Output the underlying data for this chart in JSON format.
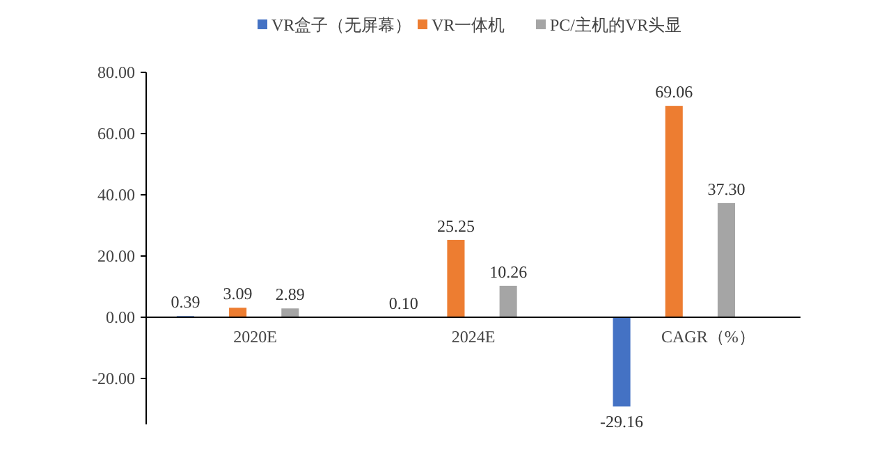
{
  "chart_data": {
    "type": "bar",
    "categories": [
      "2020E",
      "2024E",
      "CAGR（%）"
    ],
    "series": [
      {
        "name": "VR盒子（无屏幕）",
        "color": "#4472c4",
        "values": [
          0.39,
          0.1,
          -29.16
        ],
        "value_labels": [
          "0.39",
          "0.10",
          "-29.16"
        ]
      },
      {
        "name": "VR一体机",
        "color": "#ed7d31",
        "values": [
          3.09,
          25.25,
          69.06
        ],
        "value_labels": [
          "3.09",
          "25.25",
          "69.06"
        ]
      },
      {
        "name": "PC/主机的VR头显",
        "color": "#a5a5a5",
        "values": [
          2.89,
          10.26,
          37.3
        ],
        "value_labels": [
          "2.89",
          "10.26",
          "37.30"
        ]
      }
    ],
    "ylim": [
      -35,
      80
    ],
    "yticks": [
      {
        "value": -20,
        "label": "-20.00"
      },
      {
        "value": 0,
        "label": "0.00"
      },
      {
        "value": 20,
        "label": "20.00"
      },
      {
        "value": 40,
        "label": "40.00"
      },
      {
        "value": 60,
        "label": "60.00"
      },
      {
        "value": 80,
        "label": "80.00"
      }
    ],
    "grid": false,
    "legend": "top"
  }
}
